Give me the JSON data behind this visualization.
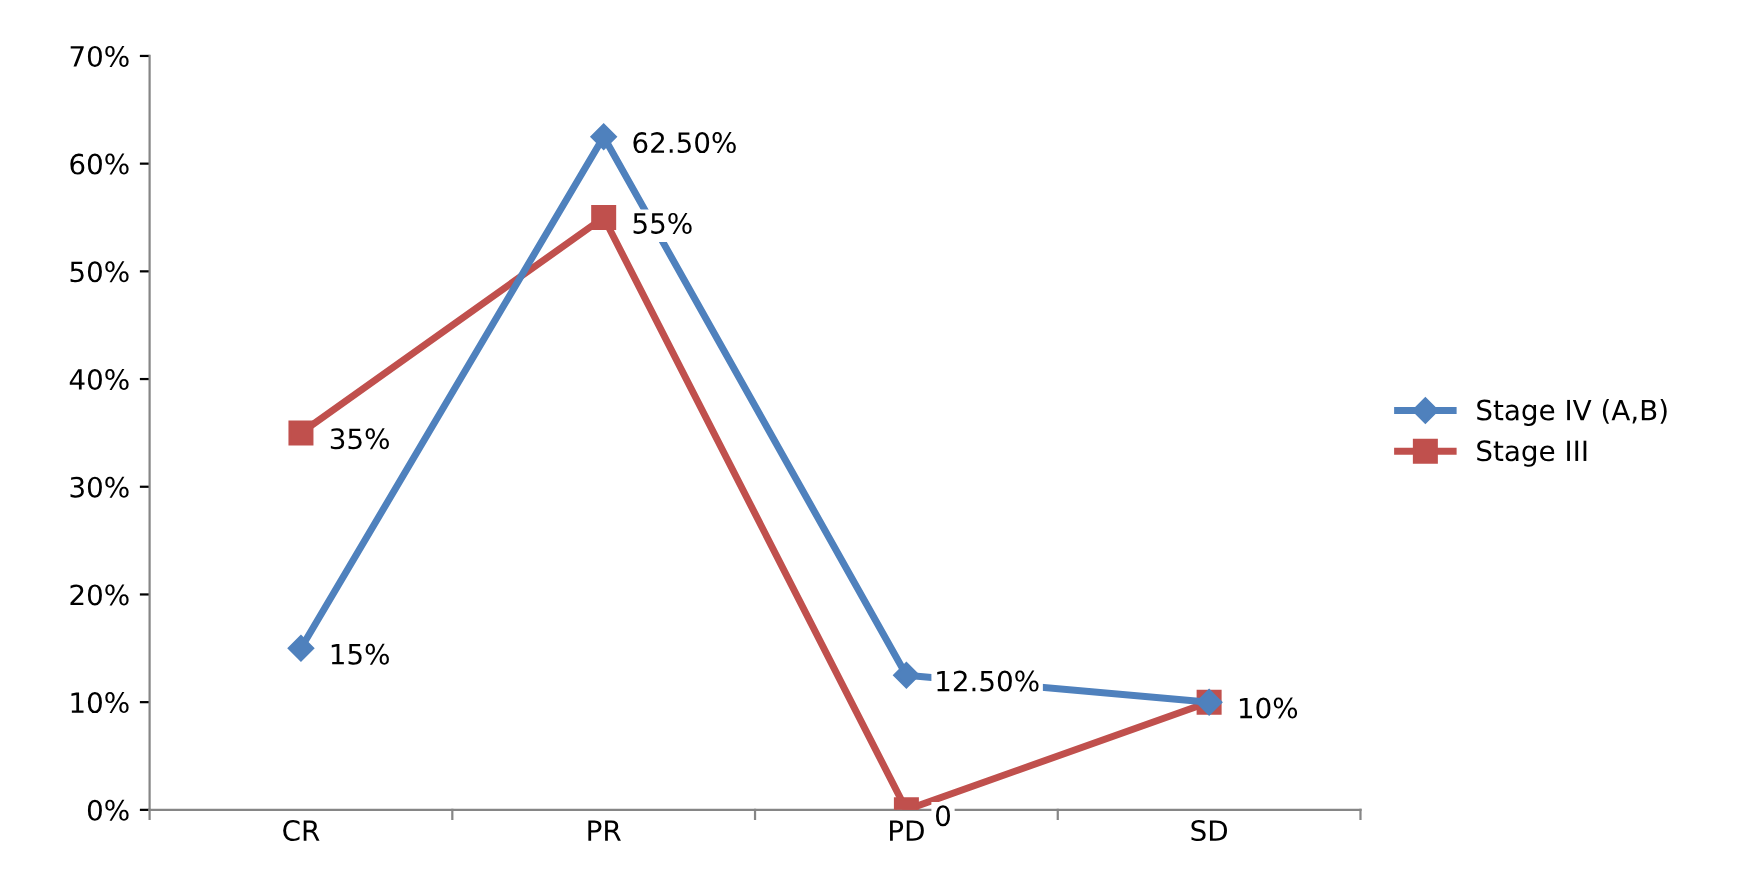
{
  "chart_data": {
    "type": "line",
    "categories": [
      "CR",
      "PR",
      "PD",
      "SD"
    ],
    "series": [
      {
        "name": "Stage IV (A,B)",
        "color": "#4f81bd",
        "marker": "diamond",
        "values": [
          15,
          62.5,
          12.5,
          10
        ],
        "value_labels": [
          "15%",
          "62.50%",
          "12.50%",
          null
        ]
      },
      {
        "name": "Stage III",
        "color": "#c0504d",
        "marker": "square",
        "values": [
          35,
          55,
          0,
          10
        ],
        "value_labels": [
          "35%",
          "55%",
          "0",
          "10%"
        ]
      }
    ],
    "ylim": [
      0,
      70
    ],
    "yticks": [
      {
        "value": 0,
        "label": "0%"
      },
      {
        "value": 10,
        "label": "10%"
      },
      {
        "value": 20,
        "label": "20%"
      },
      {
        "value": 30,
        "label": "30%"
      },
      {
        "value": 40,
        "label": "40%"
      },
      {
        "value": 50,
        "label": "50%"
      },
      {
        "value": 60,
        "label": "60%"
      },
      {
        "value": 70,
        "label": "70%"
      }
    ],
    "grid": false,
    "legend": "right",
    "line_style": "solid"
  }
}
